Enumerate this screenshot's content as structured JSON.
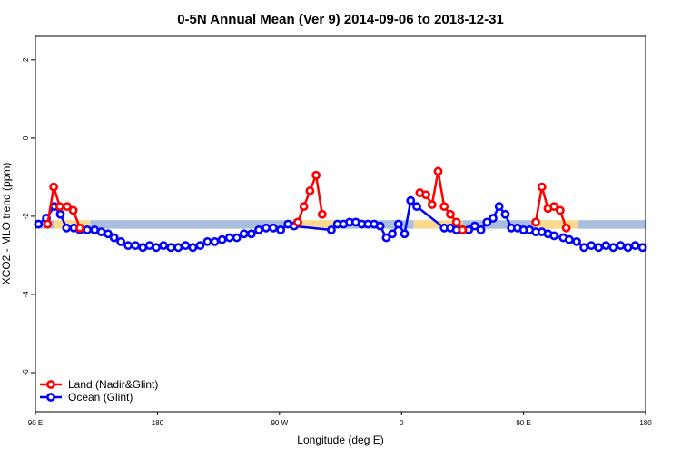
{
  "chart_data": {
    "type": "line",
    "title": "0-5N Annual Mean (Ver 9)   2014-09-06 to 2018-12-31",
    "xlabel": "Longitude (deg E)",
    "ylabel": "XCO2 - MLO trend (ppm)",
    "xlim": [
      0,
      100
    ],
    "ylim": [
      -7.0,
      2.6
    ],
    "x_ticks": [
      {
        "pos": 0,
        "label": "90 E"
      },
      {
        "pos": 20,
        "label": "180"
      },
      {
        "pos": 40,
        "label": "90 W"
      },
      {
        "pos": 60,
        "label": "0"
      },
      {
        "pos": 80,
        "label": "90 E"
      },
      {
        "pos": 100,
        "label": "180"
      }
    ],
    "y_ticks": [
      {
        "value": 2,
        "label": "2"
      },
      {
        "value": 0,
        "label": "0"
      },
      {
        "value": -2,
        "label": "-2"
      },
      {
        "value": -4,
        "label": "-4"
      },
      {
        "value": -6,
        "label": "-6"
      }
    ],
    "band": {
      "y_low": -2.32,
      "y_high": -2.1,
      "colors": {
        "ocean": "#a9bedc",
        "land": "#fad98c"
      },
      "segments": [
        {
          "type": "ocean",
          "x0": 0,
          "x1": 3.0
        },
        {
          "type": "land",
          "x0": 3.0,
          "x1": 9.0
        },
        {
          "type": "ocean",
          "x0": 9.0,
          "x1": 43.0
        },
        {
          "type": "land",
          "x0": 43.0,
          "x1": 49.0
        },
        {
          "type": "ocean",
          "x0": 49.0,
          "x1": 62.0
        },
        {
          "type": "land",
          "x0": 62.0,
          "x1": 70.0
        },
        {
          "type": "ocean",
          "x0": 70.0,
          "x1": 82.0
        },
        {
          "type": "land",
          "x0": 82.0,
          "x1": 89.0
        },
        {
          "type": "ocean",
          "x0": 89.0,
          "x1": 100.0
        }
      ]
    },
    "series": [
      {
        "name": "Land (Nadir&Glint)",
        "color": "#ff0000",
        "segments": [
          {
            "x": [
              2.0,
              3.0,
              4.0,
              5.2,
              6.2,
              7.3
            ],
            "y": [
              -2.2,
              -1.25,
              -1.75,
              -1.75,
              -1.85,
              -2.3
            ]
          },
          {
            "x": [
              43.0,
              44.0,
              45.0,
              46.0,
              47.0
            ],
            "y": [
              -2.15,
              -1.75,
              -1.35,
              -0.95,
              -1.95
            ]
          },
          {
            "x": [
              63.0,
              64.0,
              65.0,
              66.0,
              67.0,
              68.0,
              69.0,
              70.0
            ],
            "y": [
              -1.4,
              -1.45,
              -1.7,
              -0.85,
              -1.75,
              -1.95,
              -2.15,
              -2.35
            ]
          },
          {
            "x": [
              82.0,
              83.0,
              84.0,
              85.0,
              86.0,
              87.0
            ],
            "y": [
              -2.15,
              -1.25,
              -1.8,
              -1.75,
              -1.85,
              -2.3
            ]
          }
        ]
      },
      {
        "name": "Ocean (Glint)",
        "color": "#0000ff",
        "x": [
          0.5,
          1.8,
          3.1,
          4.1,
          5.1,
          6.3,
          7.3,
          8.5,
          9.7,
          10.8,
          11.9,
          12.9,
          14.0,
          15.2,
          16.4,
          17.6,
          18.7,
          19.8,
          21.0,
          22.2,
          23.4,
          24.6,
          25.8,
          27.0,
          28.2,
          29.4,
          30.6,
          31.8,
          33.0,
          34.2,
          35.4,
          36.6,
          37.8,
          39.0,
          40.2,
          41.4,
          42.4,
          48.5,
          49.5,
          50.5,
          51.5,
          52.5,
          53.5,
          54.5,
          55.5,
          56.5,
          57.5,
          58.5,
          59.5,
          60.5,
          61.5,
          62.5,
          67.0,
          68.0,
          69.0,
          70.0,
          71.0,
          72.0,
          73.0,
          74.0,
          75.0,
          76.0,
          77.0,
          78.0,
          79.0,
          80.0,
          81.0,
          82.0,
          83.0,
          84.0,
          85.0,
          86.5,
          87.5,
          88.7,
          89.9,
          91.1,
          92.3,
          93.5,
          94.7,
          95.9,
          97.1,
          98.3,
          99.5
        ],
        "y": [
          -2.2,
          -2.05,
          -1.75,
          -1.95,
          -2.3,
          -2.3,
          -2.35,
          -2.35,
          -2.35,
          -2.4,
          -2.45,
          -2.55,
          -2.65,
          -2.75,
          -2.75,
          -2.8,
          -2.75,
          -2.8,
          -2.75,
          -2.8,
          -2.8,
          -2.75,
          -2.8,
          -2.75,
          -2.65,
          -2.65,
          -2.6,
          -2.55,
          -2.55,
          -2.45,
          -2.45,
          -2.35,
          -2.3,
          -2.3,
          -2.35,
          -2.2,
          -2.25,
          -2.35,
          -2.2,
          -2.2,
          -2.15,
          -2.15,
          -2.2,
          -2.2,
          -2.2,
          -2.25,
          -2.55,
          -2.45,
          -2.2,
          -2.45,
          -1.6,
          -1.75,
          -2.3,
          -2.3,
          -2.35,
          -2.35,
          -2.35,
          -2.25,
          -2.35,
          -2.15,
          -2.05,
          -1.75,
          -1.95,
          -2.3,
          -2.3,
          -2.35,
          -2.35,
          -2.4,
          -2.4,
          -2.45,
          -2.5,
          -2.55,
          -2.6,
          -2.65,
          -2.8,
          -2.75,
          -2.8,
          -2.75,
          -2.8,
          -2.75,
          -2.8,
          -2.75,
          -2.8
        ]
      }
    ],
    "legend": {
      "placement": "bottom-left"
    }
  }
}
